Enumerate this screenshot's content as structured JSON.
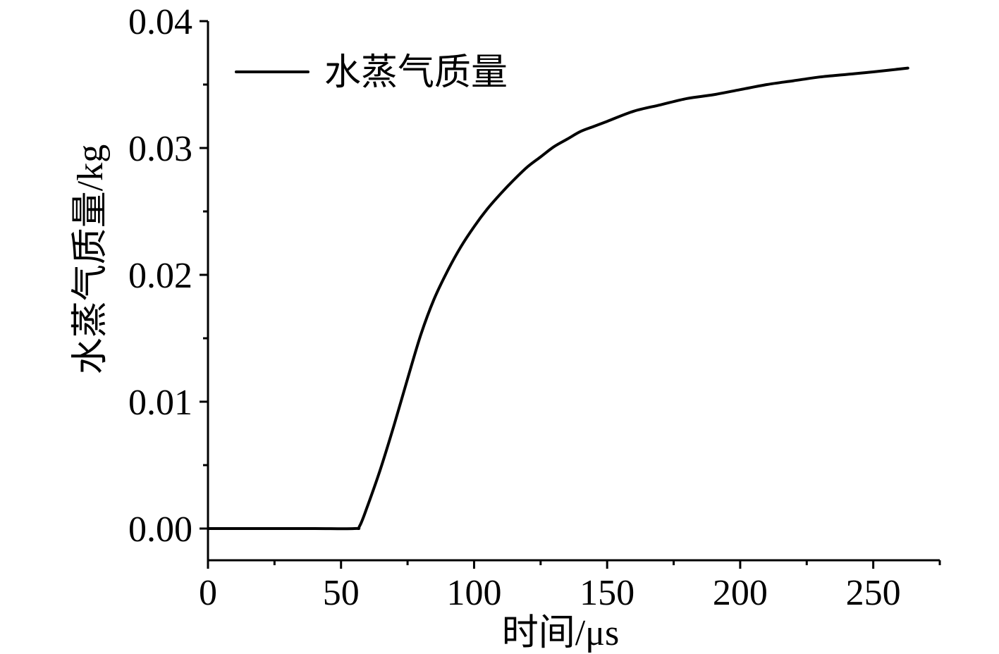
{
  "chart_data": {
    "type": "line",
    "xlabel": "时间/μs",
    "ylabel": "水蒸气质量/kg",
    "xlim": [
      0,
      275
    ],
    "ylim": [
      -0.0025,
      0.04
    ],
    "xticks": [
      0,
      50,
      100,
      150,
      200,
      250
    ],
    "xtick_labels": [
      "0",
      "50",
      "100",
      "150",
      "200",
      "250"
    ],
    "yticks": [
      0.0,
      0.01,
      0.02,
      0.03,
      0.04
    ],
    "ytick_labels": [
      "0.00",
      "0.01",
      "0.02",
      "0.03",
      "0.04"
    ],
    "grid": false,
    "legend": "top-left",
    "series": [
      {
        "name": "水蒸气质量",
        "color": "#000000",
        "x": [
          0,
          20,
          40,
          55,
          57,
          60,
          65,
          70,
          75,
          80,
          85,
          90,
          95,
          100,
          105,
          110,
          115,
          120,
          125,
          130,
          135,
          140,
          145,
          150,
          160,
          170,
          180,
          190,
          200,
          210,
          220,
          230,
          240,
          250,
          263
        ],
        "y": [
          0.0,
          0.0,
          0.0,
          0.0,
          0.0002,
          0.0018,
          0.0048,
          0.0082,
          0.0118,
          0.0153,
          0.0181,
          0.0203,
          0.0222,
          0.0238,
          0.0252,
          0.0264,
          0.0275,
          0.0285,
          0.0293,
          0.0301,
          0.0307,
          0.0313,
          0.0317,
          0.0321,
          0.0329,
          0.0334,
          0.0339,
          0.0342,
          0.0346,
          0.035,
          0.0353,
          0.0356,
          0.0358,
          0.036,
          0.0363
        ]
      }
    ]
  }
}
